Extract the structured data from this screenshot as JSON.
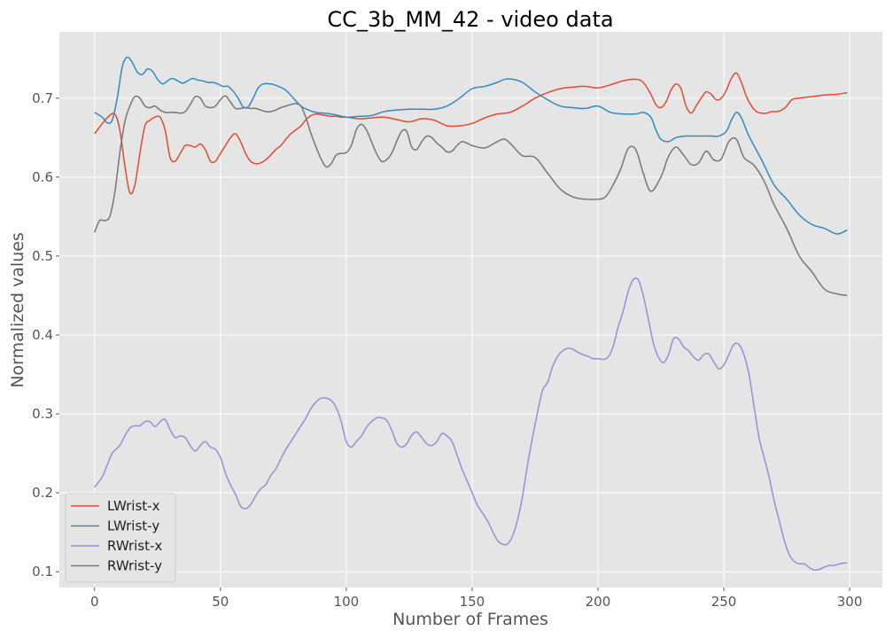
{
  "chart_data": {
    "type": "line",
    "title": "CC_3b_MM_42 - video data",
    "xlabel": "Number of Frames",
    "ylabel": "Normalized values",
    "xlim": [
      -14,
      313
    ],
    "ylim": [
      0.08,
      0.784
    ],
    "xticks": [
      0,
      50,
      100,
      150,
      200,
      250,
      300
    ],
    "yticks": [
      0.1,
      0.2,
      0.3,
      0.4,
      0.5,
      0.6,
      0.7
    ],
    "grid": true,
    "legend": "lower-left",
    "background_color": "#e5e5e5",
    "grid_color": "#ffffff",
    "series": [
      {
        "name": "LWrist-x",
        "color": "#e24a33",
        "x": [
          0,
          5,
          8,
          10,
          12,
          14,
          16,
          18,
          20,
          22,
          24,
          26,
          28,
          30,
          32,
          34,
          36,
          38,
          40,
          42,
          44,
          46,
          48,
          50,
          52,
          54,
          56,
          58,
          60,
          62,
          64,
          66,
          68,
          70,
          72,
          74,
          76,
          78,
          80,
          82,
          84,
          86,
          88,
          90,
          92,
          94,
          96,
          98,
          100,
          105,
          110,
          115,
          120,
          125,
          130,
          135,
          140,
          145,
          150,
          155,
          160,
          165,
          170,
          175,
          180,
          185,
          190,
          195,
          200,
          205,
          210,
          215,
          218,
          221,
          223,
          225,
          227,
          229,
          231,
          233,
          235,
          237,
          239,
          241,
          243,
          245,
          247,
          249,
          251,
          253,
          255,
          257,
          259,
          261,
          263,
          265,
          267,
          269,
          271,
          273,
          275,
          277,
          280,
          285,
          290,
          295,
          299
        ],
        "y": [
          0.655,
          0.675,
          0.68,
          0.66,
          0.615,
          0.58,
          0.59,
          0.63,
          0.665,
          0.672,
          0.676,
          0.676,
          0.66,
          0.625,
          0.62,
          0.63,
          0.64,
          0.64,
          0.638,
          0.642,
          0.635,
          0.62,
          0.62,
          0.63,
          0.64,
          0.65,
          0.655,
          0.645,
          0.63,
          0.62,
          0.617,
          0.618,
          0.622,
          0.628,
          0.635,
          0.64,
          0.648,
          0.655,
          0.66,
          0.665,
          0.673,
          0.678,
          0.68,
          0.679,
          0.678,
          0.677,
          0.677,
          0.676,
          0.676,
          0.674,
          0.675,
          0.676,
          0.673,
          0.67,
          0.674,
          0.672,
          0.665,
          0.665,
          0.668,
          0.675,
          0.68,
          0.682,
          0.69,
          0.7,
          0.707,
          0.712,
          0.714,
          0.715,
          0.713,
          0.717,
          0.722,
          0.724,
          0.72,
          0.705,
          0.692,
          0.688,
          0.695,
          0.71,
          0.718,
          0.712,
          0.69,
          0.681,
          0.69,
          0.7,
          0.708,
          0.705,
          0.698,
          0.7,
          0.71,
          0.725,
          0.732,
          0.72,
          0.702,
          0.69,
          0.683,
          0.681,
          0.681,
          0.683,
          0.683,
          0.685,
          0.69,
          0.698,
          0.7,
          0.702,
          0.704,
          0.705,
          0.707
        ]
      },
      {
        "name": "LWrist-y",
        "color": "#348abd",
        "x": [
          0,
          3,
          5,
          7,
          9,
          11,
          13,
          15,
          17,
          19,
          21,
          23,
          25,
          27,
          29,
          31,
          33,
          35,
          37,
          39,
          41,
          43,
          45,
          47,
          49,
          51,
          53,
          55,
          57,
          59,
          61,
          63,
          65,
          67,
          70,
          73,
          76,
          79,
          82,
          85,
          88,
          91,
          94,
          97,
          100,
          105,
          110,
          115,
          120,
          125,
          130,
          135,
          140,
          145,
          150,
          155,
          160,
          163,
          166,
          170,
          175,
          180,
          185,
          190,
          195,
          200,
          205,
          210,
          215,
          218,
          221,
          223,
          225,
          228,
          231,
          235,
          240,
          245,
          248,
          251,
          253,
          255,
          257,
          260,
          265,
          270,
          275,
          280,
          285,
          290,
          295,
          299
        ],
        "y": [
          0.682,
          0.676,
          0.669,
          0.672,
          0.7,
          0.74,
          0.752,
          0.745,
          0.733,
          0.73,
          0.737,
          0.734,
          0.724,
          0.718,
          0.722,
          0.725,
          0.722,
          0.719,
          0.722,
          0.725,
          0.723,
          0.722,
          0.72,
          0.72,
          0.718,
          0.715,
          0.715,
          0.709,
          0.7,
          0.689,
          0.689,
          0.7,
          0.713,
          0.718,
          0.718,
          0.715,
          0.71,
          0.7,
          0.69,
          0.685,
          0.682,
          0.681,
          0.68,
          0.678,
          0.676,
          0.677,
          0.678,
          0.683,
          0.685,
          0.686,
          0.686,
          0.686,
          0.69,
          0.7,
          0.712,
          0.715,
          0.72,
          0.724,
          0.724,
          0.72,
          0.708,
          0.698,
          0.69,
          0.688,
          0.687,
          0.69,
          0.682,
          0.68,
          0.68,
          0.682,
          0.676,
          0.66,
          0.648,
          0.645,
          0.65,
          0.652,
          0.652,
          0.652,
          0.652,
          0.658,
          0.672,
          0.682,
          0.675,
          0.652,
          0.622,
          0.59,
          0.572,
          0.552,
          0.54,
          0.535,
          0.528,
          0.533
        ]
      },
      {
        "name": "RWrist-x",
        "color": "#988ed5",
        "x": [
          0,
          3,
          5,
          7,
          10,
          12,
          14,
          16,
          18,
          20,
          22,
          24,
          26,
          28,
          30,
          32,
          34,
          36,
          38,
          40,
          42,
          44,
          46,
          48,
          50,
          52,
          54,
          56,
          58,
          60,
          62,
          64,
          66,
          68,
          70,
          72,
          74,
          76,
          78,
          80,
          82,
          84,
          86,
          88,
          90,
          92,
          94,
          96,
          98,
          100,
          102,
          104,
          106,
          108,
          110,
          112,
          114,
          116,
          118,
          120,
          122,
          124,
          126,
          128,
          130,
          132,
          134,
          136,
          138,
          140,
          142,
          144,
          146,
          148,
          150,
          152,
          154,
          156,
          158,
          160,
          162,
          164,
          166,
          168,
          170,
          172,
          174,
          176,
          178,
          180,
          182,
          184,
          186,
          188,
          190,
          192,
          194,
          196,
          198,
          200,
          202,
          204,
          206,
          208,
          210,
          212,
          214,
          216,
          218,
          220,
          222,
          224,
          226,
          228,
          230,
          232,
          234,
          236,
          238,
          240,
          242,
          244,
          246,
          248,
          250,
          252,
          254,
          256,
          258,
          260,
          262,
          264,
          266,
          268,
          270,
          272,
          274,
          276,
          278,
          280,
          282,
          284,
          286,
          288,
          290,
          292,
          294,
          296,
          298,
          299
        ],
        "y": [
          0.207,
          0.22,
          0.235,
          0.25,
          0.26,
          0.272,
          0.282,
          0.285,
          0.285,
          0.29,
          0.29,
          0.284,
          0.29,
          0.293,
          0.28,
          0.27,
          0.272,
          0.27,
          0.26,
          0.253,
          0.26,
          0.265,
          0.258,
          0.255,
          0.245,
          0.225,
          0.21,
          0.198,
          0.183,
          0.18,
          0.185,
          0.196,
          0.205,
          0.21,
          0.222,
          0.23,
          0.243,
          0.255,
          0.265,
          0.275,
          0.285,
          0.295,
          0.307,
          0.315,
          0.32,
          0.32,
          0.317,
          0.308,
          0.29,
          0.265,
          0.258,
          0.265,
          0.272,
          0.283,
          0.29,
          0.295,
          0.295,
          0.292,
          0.28,
          0.263,
          0.258,
          0.262,
          0.273,
          0.277,
          0.27,
          0.262,
          0.26,
          0.265,
          0.275,
          0.272,
          0.265,
          0.248,
          0.23,
          0.215,
          0.2,
          0.185,
          0.175,
          0.165,
          0.152,
          0.14,
          0.135,
          0.135,
          0.145,
          0.165,
          0.195,
          0.235,
          0.27,
          0.302,
          0.33,
          0.34,
          0.36,
          0.373,
          0.38,
          0.383,
          0.382,
          0.378,
          0.375,
          0.373,
          0.37,
          0.37,
          0.369,
          0.372,
          0.385,
          0.41,
          0.43,
          0.455,
          0.47,
          0.47,
          0.45,
          0.42,
          0.39,
          0.372,
          0.365,
          0.375,
          0.395,
          0.395,
          0.385,
          0.38,
          0.372,
          0.368,
          0.375,
          0.376,
          0.366,
          0.357,
          0.362,
          0.375,
          0.388,
          0.388,
          0.375,
          0.35,
          0.31,
          0.27,
          0.245,
          0.22,
          0.19,
          0.165,
          0.14,
          0.122,
          0.113,
          0.11,
          0.11,
          0.105,
          0.102,
          0.103,
          0.106,
          0.108,
          0.108,
          0.11,
          0.111,
          0.111
        ]
      },
      {
        "name": "RWrist-y",
        "color": "#777777",
        "x": [
          0,
          2,
          4,
          6,
          8,
          10,
          12,
          14,
          16,
          18,
          20,
          22,
          24,
          26,
          28,
          30,
          32,
          34,
          36,
          38,
          40,
          42,
          44,
          46,
          48,
          50,
          52,
          54,
          56,
          58,
          60,
          62,
          64,
          66,
          68,
          70,
          72,
          74,
          76,
          78,
          80,
          82,
          84,
          86,
          88,
          90,
          92,
          94,
          96,
          98,
          100,
          102,
          104,
          106,
          108,
          110,
          112,
          114,
          116,
          118,
          120,
          122,
          124,
          126,
          128,
          130,
          132,
          134,
          136,
          138,
          140,
          142,
          144,
          146,
          148,
          150,
          155,
          160,
          163,
          166,
          170,
          175,
          180,
          185,
          190,
          195,
          200,
          203,
          206,
          209,
          212,
          215,
          218,
          221,
          225,
          228,
          231,
          234,
          237,
          240,
          243,
          246,
          249,
          252,
          255,
          258,
          262,
          266,
          270,
          275,
          280,
          285,
          290,
          295,
          299
        ],
        "y": [
          0.53,
          0.545,
          0.545,
          0.55,
          0.58,
          0.63,
          0.67,
          0.69,
          0.702,
          0.7,
          0.69,
          0.688,
          0.69,
          0.685,
          0.682,
          0.682,
          0.682,
          0.681,
          0.683,
          0.692,
          0.702,
          0.7,
          0.69,
          0.688,
          0.69,
          0.698,
          0.703,
          0.695,
          0.687,
          0.687,
          0.688,
          0.687,
          0.687,
          0.685,
          0.683,
          0.683,
          0.685,
          0.688,
          0.69,
          0.692,
          0.693,
          0.69,
          0.675,
          0.655,
          0.638,
          0.623,
          0.613,
          0.617,
          0.628,
          0.63,
          0.631,
          0.64,
          0.66,
          0.667,
          0.66,
          0.645,
          0.63,
          0.62,
          0.622,
          0.63,
          0.645,
          0.658,
          0.658,
          0.638,
          0.635,
          0.645,
          0.652,
          0.65,
          0.643,
          0.638,
          0.632,
          0.633,
          0.64,
          0.645,
          0.643,
          0.64,
          0.637,
          0.645,
          0.648,
          0.64,
          0.627,
          0.625,
          0.605,
          0.585,
          0.575,
          0.572,
          0.572,
          0.575,
          0.59,
          0.61,
          0.636,
          0.635,
          0.605,
          0.582,
          0.6,
          0.626,
          0.638,
          0.628,
          0.616,
          0.618,
          0.633,
          0.622,
          0.623,
          0.645,
          0.648,
          0.625,
          0.615,
          0.595,
          0.565,
          0.535,
          0.5,
          0.48,
          0.458,
          0.452,
          0.45
        ]
      }
    ]
  }
}
